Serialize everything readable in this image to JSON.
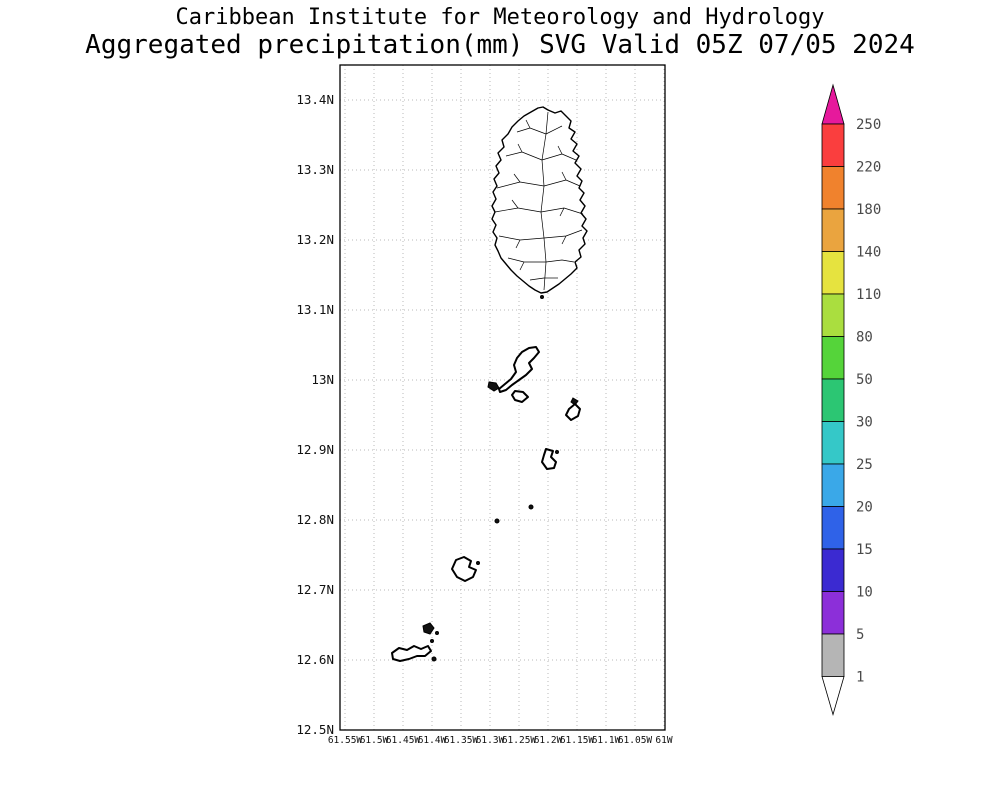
{
  "title": {
    "line1": "Caribbean Institute for Meteorology and Hydrology",
    "line2": "Aggregated precipitation(mm) SVG Valid 05Z 07/05 2024"
  },
  "map": {
    "lat_labels": [
      "13.4N",
      "13.3N",
      "13.2N",
      "13.1N",
      "13N",
      "12.9N",
      "12.8N",
      "12.7N",
      "12.6N",
      "12.5N"
    ],
    "lon_labels": [
      "61.55W",
      "61.5W",
      "61.45W",
      "61.4W",
      "61.35W",
      "61.3W",
      "61.25W",
      "61.2W",
      "61.15W",
      "61.1W",
      "61.05W",
      "61W"
    ]
  },
  "colorbar": {
    "levels": [
      "250",
      "220",
      "180",
      "140",
      "110",
      "80",
      "50",
      "30",
      "25",
      "20",
      "15",
      "10",
      "5",
      "1"
    ],
    "colors_top_to_bottom": [
      "#e6199c",
      "#fa3e3e",
      "#f0822d",
      "#eaa43f",
      "#e6e33f",
      "#aade3f",
      "#55d43a",
      "#2cc673",
      "#35c8c8",
      "#3aa8e8",
      "#2f62e8",
      "#3b2ad1",
      "#8c2fd9",
      "#b5b5b5",
      "#ffffff"
    ]
  }
}
